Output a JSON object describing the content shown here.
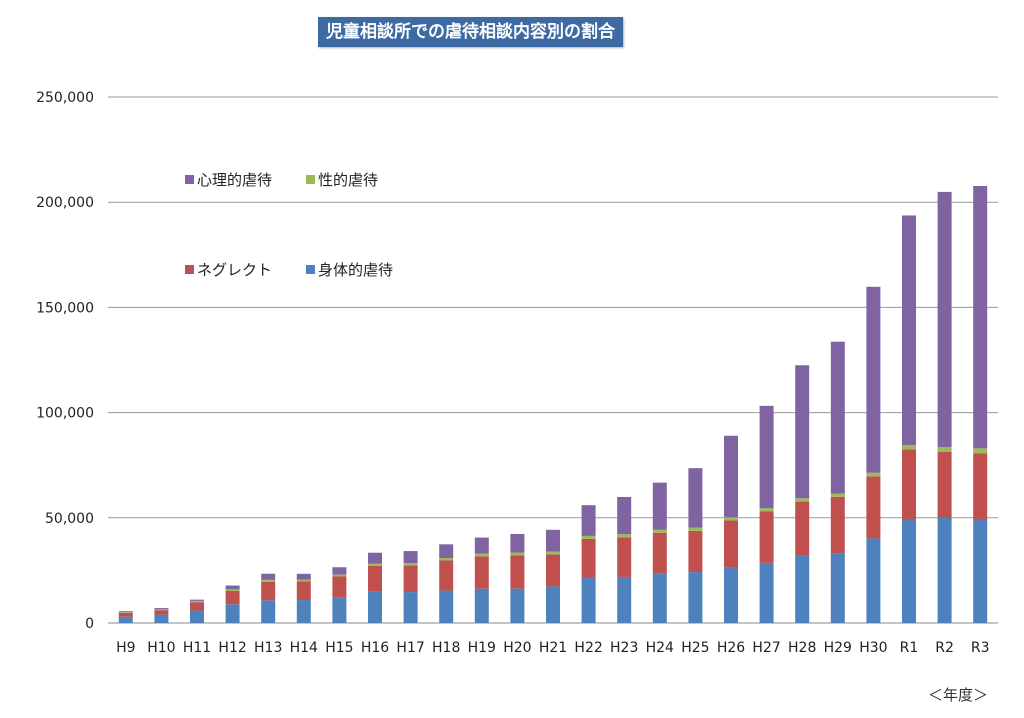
{
  "title": "児童相談所での虐待相談内容別の割合",
  "unit_label": "＜年度＞",
  "colors": {
    "心理的虐待": "#8064a2",
    "性的虐待": "#9bbb59",
    "ネグレクト": "#c0504d",
    "身体的虐待": "#4f81bd"
  },
  "chart_data": {
    "type": "bar",
    "stacked": true,
    "title": "児童相談所での虐待相談内容別の割合",
    "xlabel": "＜年度＞",
    "ylabel": "",
    "ylim": [
      0,
      250000
    ],
    "yticks": [
      "0",
      "50,000",
      "100,000",
      "150,000",
      "200,000",
      "250,000"
    ],
    "ytick_values": [
      0,
      50000,
      100000,
      150000,
      200000,
      250000
    ],
    "grid": true,
    "legend_position": "top-left",
    "legend_order": [
      "心理的虐待",
      "性的虐待",
      "ネグレクト",
      "身体的虐待"
    ],
    "categories": [
      "H9",
      "H10",
      "H11",
      "H12",
      "H13",
      "H14",
      "H15",
      "H16",
      "H17",
      "H18",
      "H19",
      "H20",
      "H21",
      "H22",
      "H23",
      "H24",
      "H25",
      "H26",
      "H27",
      "H28",
      "H29",
      "H30",
      "R1",
      "R2",
      "R3"
    ],
    "series": [
      {
        "name": "身体的虐待",
        "values": [
          3000,
          4000,
          5900,
          8900,
          10800,
          10900,
          12000,
          14900,
          14700,
          15400,
          16300,
          16300,
          17400,
          21600,
          21900,
          23600,
          24200,
          26200,
          28600,
          31900,
          33200,
          40200,
          49200,
          50000,
          49200
        ]
      },
      {
        "name": "ネグレクト",
        "values": [
          1800,
          2100,
          4000,
          6300,
          8800,
          8900,
          10100,
          12300,
          12600,
          14300,
          15400,
          15900,
          15200,
          18400,
          18800,
          19300,
          19600,
          22500,
          24400,
          25800,
          26800,
          29500,
          33300,
          31400,
          31500
        ]
      },
      {
        "name": "性的虐待",
        "values": [
          300,
          400,
          600,
          800,
          900,
          800,
          900,
          1000,
          1100,
          1200,
          1300,
          1300,
          1400,
          1400,
          1500,
          1400,
          1500,
          1500,
          1500,
          1600,
          1500,
          1700,
          2100,
          2200,
          2300
        ]
      },
      {
        "name": "心理的虐待",
        "values": [
          500,
          600,
          600,
          1800,
          2900,
          2800,
          3500,
          5200,
          5800,
          6500,
          7600,
          8800,
          10300,
          14600,
          17700,
          22400,
          28300,
          38800,
          48700,
          63200,
          72200,
          88400,
          109100,
          121300,
          124700
        ]
      }
    ]
  }
}
